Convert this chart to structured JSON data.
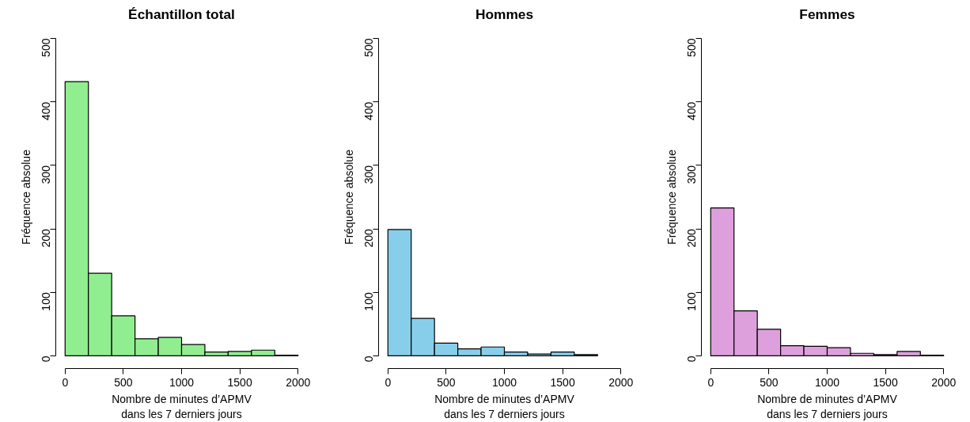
{
  "chart_data": [
    {
      "type": "histogram",
      "title": "Échantillon total",
      "xlabel": "Nombre de minutes d’APMV\ndans les 7 derniers jours",
      "ylabel": "Fréquence absolue",
      "bins": [
        0,
        200,
        400,
        600,
        800,
        1000,
        1200,
        1400,
        1600,
        1800,
        2000
      ],
      "values": [
        432,
        130,
        63,
        27,
        29,
        18,
        6,
        7,
        9,
        1
      ],
      "color": "#90ee90",
      "xlim": [
        0,
        2000
      ],
      "ylim": [
        0,
        500
      ],
      "xticks": [
        0,
        500,
        1000,
        1500,
        2000
      ],
      "yticks": [
        0,
        100,
        200,
        300,
        400,
        500
      ],
      "grid": false
    },
    {
      "type": "histogram",
      "title": "Hommes",
      "xlabel": "Nombre de minutes d’APMV\ndans les 7 derniers jours",
      "ylabel": "Fréquence absolue",
      "bins": [
        0,
        200,
        400,
        600,
        800,
        1000,
        1200,
        1400,
        1600,
        1800
      ],
      "values": [
        199,
        59,
        20,
        11,
        14,
        6,
        3,
        6,
        2
      ],
      "color": "#87ceeb",
      "xlim": [
        0,
        2000
      ],
      "ylim": [
        0,
        500
      ],
      "xticks": [
        0,
        500,
        1000,
        1500,
        2000
      ],
      "yticks": [
        0,
        100,
        200,
        300,
        400,
        500
      ],
      "grid": false
    },
    {
      "type": "histogram",
      "title": "Femmes",
      "xlabel": "Nombre de minutes d’APMV\ndans les 7 derniers jours",
      "ylabel": "Fréquence absolue",
      "bins": [
        0,
        200,
        400,
        600,
        800,
        1000,
        1200,
        1400,
        1600,
        1800,
        2000
      ],
      "values": [
        233,
        71,
        42,
        16,
        15,
        13,
        4,
        2,
        7,
        1
      ],
      "color": "#dda0dd",
      "xlim": [
        0,
        2000
      ],
      "ylim": [
        0,
        500
      ],
      "xticks": [
        0,
        500,
        1000,
        1500,
        2000
      ],
      "yticks": [
        0,
        100,
        200,
        300,
        400,
        500
      ],
      "grid": false
    }
  ]
}
